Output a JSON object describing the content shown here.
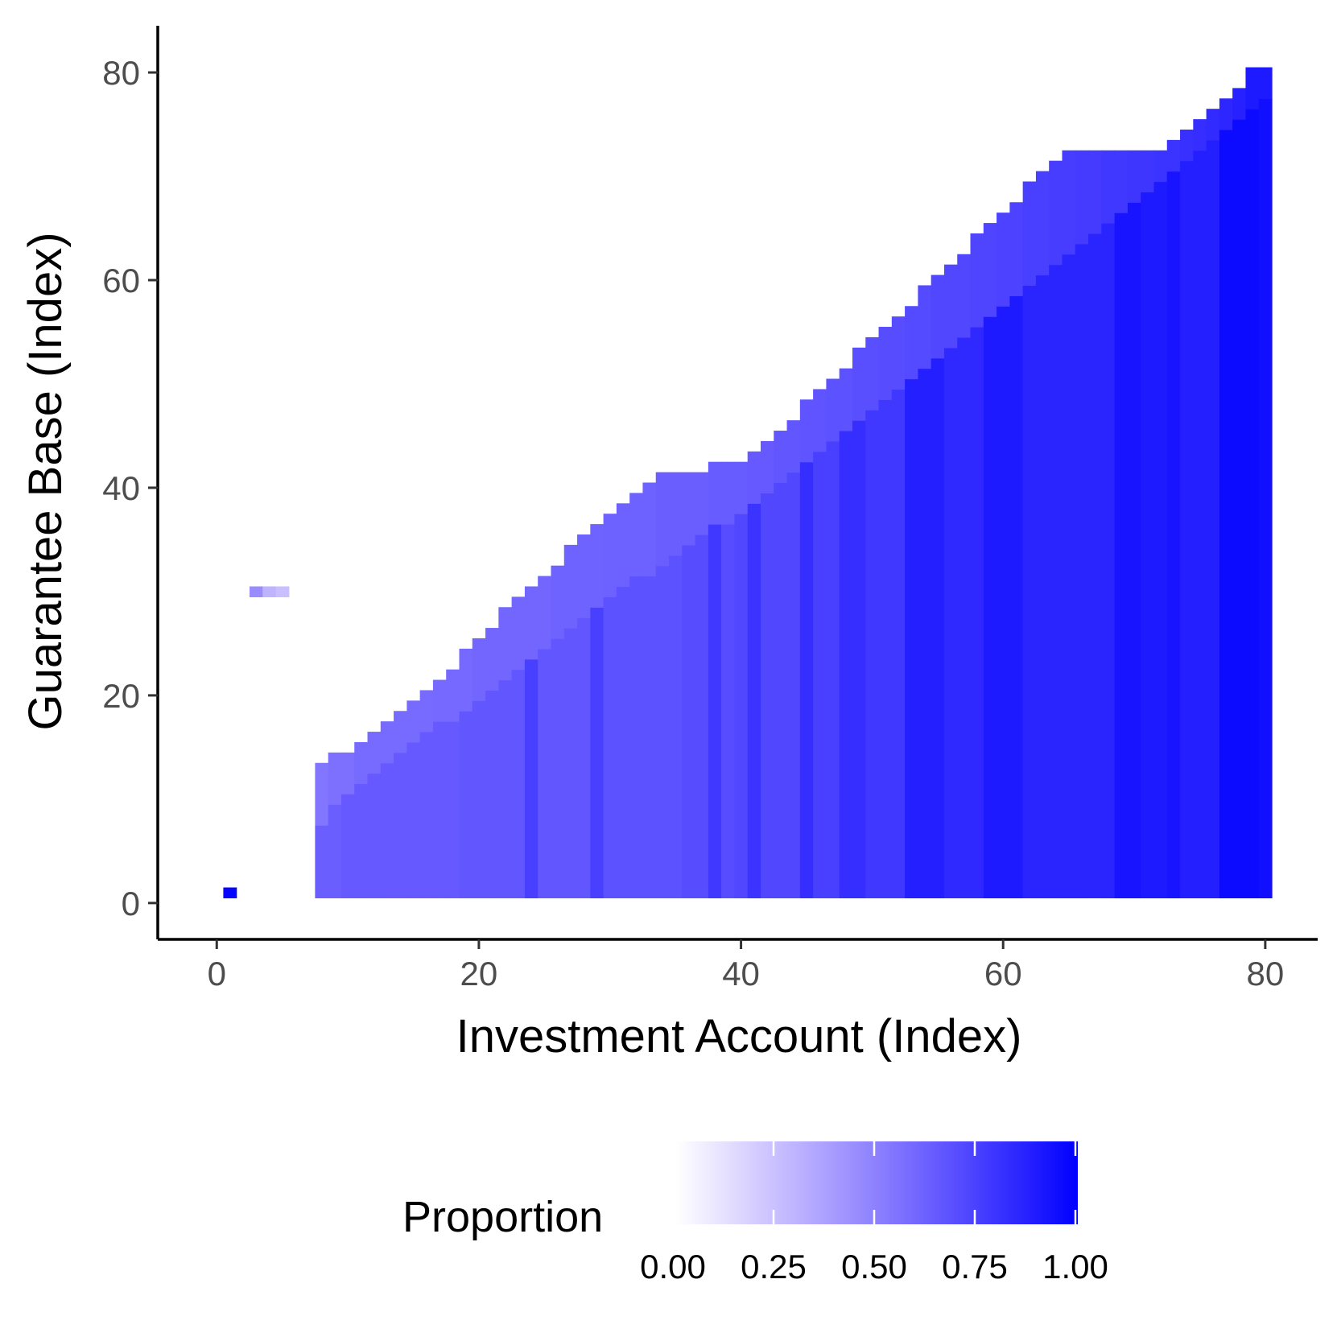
{
  "chart_data": {
    "type": "heatmap",
    "xlabel": "Investment Account (Index)",
    "ylabel": "Guarantee Base (Index)",
    "xlim": [
      -4.5,
      84
    ],
    "ylim": [
      -3.5,
      84.5
    ],
    "x_ticks": [
      0,
      20,
      40,
      60,
      80
    ],
    "y_ticks": [
      0,
      20,
      40,
      60,
      80
    ],
    "x_tick_labels": [
      "0",
      "20",
      "40",
      "60",
      "80"
    ],
    "y_tick_labels": [
      "0",
      "20",
      "40",
      "60",
      "80"
    ],
    "grid": false,
    "color_scale": {
      "low": "#ffffff",
      "high": "#0000ff",
      "min": 0,
      "max": 1
    },
    "legend": {
      "title": "Proportion",
      "placement": "bottom",
      "breaks": [
        0,
        0.25,
        0.5,
        0.75,
        1
      ],
      "labels": [
        "0.00",
        "0.25",
        "0.50",
        "0.75",
        "1.00"
      ]
    },
    "isolated_cells": [
      {
        "x": 1,
        "y": 1,
        "value": 0.98
      },
      {
        "x": 3,
        "y": 30,
        "value": 0.45
      },
      {
        "x": 4,
        "y": 30,
        "value": 0.3
      },
      {
        "x": 5,
        "y": 30,
        "value": 0.25
      }
    ],
    "columns": {
      "x": [
        8,
        9,
        10,
        11,
        12,
        13,
        14,
        15,
        16,
        17,
        18,
        19,
        20,
        21,
        22,
        23,
        24,
        25,
        26,
        27,
        28,
        29,
        30,
        31,
        32,
        33,
        34,
        35,
        36,
        37,
        38,
        39,
        40,
        41,
        42,
        43,
        44,
        45,
        46,
        47,
        48,
        49,
        50,
        51,
        52,
        53,
        54,
        55,
        56,
        57,
        58,
        59,
        60,
        61,
        62,
        63,
        64,
        65,
        66,
        67,
        68,
        69,
        70,
        71,
        72,
        73,
        74,
        75,
        76,
        77,
        78,
        79,
        80
      ],
      "y_top": [
        13,
        14,
        14,
        15,
        16,
        17,
        18,
        19,
        20,
        21,
        22,
        24,
        25,
        26,
        28,
        29,
        30,
        31,
        32,
        34,
        35,
        36,
        37,
        38,
        39,
        40,
        41,
        41,
        41,
        41,
        42,
        42,
        42,
        43,
        44,
        45,
        46,
        48,
        49,
        50,
        51,
        53,
        54,
        55,
        56,
        57,
        59,
        60,
        61,
        62,
        64,
        65,
        66,
        67,
        69,
        70,
        71,
        72,
        72,
        72,
        72,
        72,
        72,
        72,
        72,
        73,
        74,
        75,
        76,
        77,
        78,
        80,
        80
      ],
      "upper_split": [
        7,
        9,
        10,
        11,
        12,
        13,
        14,
        15,
        16,
        17,
        17,
        18,
        19,
        20,
        21,
        22,
        23,
        24,
        25,
        26,
        27,
        28,
        29,
        30,
        31,
        31,
        32,
        33,
        34,
        35,
        36,
        36,
        37,
        38,
        39,
        40,
        41,
        42,
        43,
        44,
        45,
        46,
        47,
        48,
        49,
        50,
        51,
        52,
        53,
        54,
        55,
        56,
        57,
        58,
        59,
        60,
        61,
        62,
        63,
        64,
        65,
        66,
        67,
        68,
        69,
        70,
        71,
        72,
        73,
        74,
        75,
        76,
        77
      ],
      "value_upper": [
        0.54,
        0.56,
        0.56,
        0.58,
        0.58,
        0.58,
        0.58,
        0.58,
        0.58,
        0.59,
        0.59,
        0.59,
        0.6,
        0.6,
        0.6,
        0.6,
        0.6,
        0.6,
        0.61,
        0.61,
        0.61,
        0.61,
        0.62,
        0.62,
        0.62,
        0.62,
        0.63,
        0.63,
        0.63,
        0.63,
        0.64,
        0.64,
        0.64,
        0.65,
        0.65,
        0.66,
        0.66,
        0.67,
        0.67,
        0.68,
        0.68,
        0.69,
        0.69,
        0.7,
        0.7,
        0.71,
        0.71,
        0.72,
        0.72,
        0.72,
        0.73,
        0.73,
        0.74,
        0.74,
        0.75,
        0.75,
        0.76,
        0.76,
        0.77,
        0.77,
        0.78,
        0.78,
        0.79,
        0.79,
        0.8,
        0.8,
        0.81,
        0.82,
        0.83,
        0.85,
        0.87,
        0.9,
        0.9
      ],
      "value_lower": [
        0.63,
        0.63,
        0.65,
        0.65,
        0.65,
        0.65,
        0.65,
        0.65,
        0.65,
        0.65,
        0.65,
        0.66,
        0.66,
        0.66,
        0.66,
        0.66,
        0.75,
        0.66,
        0.66,
        0.66,
        0.66,
        0.75,
        0.68,
        0.68,
        0.68,
        0.68,
        0.68,
        0.68,
        0.7,
        0.7,
        0.78,
        0.7,
        0.72,
        0.8,
        0.72,
        0.72,
        0.72,
        0.82,
        0.75,
        0.75,
        0.82,
        0.82,
        0.78,
        0.78,
        0.78,
        0.88,
        0.88,
        0.88,
        0.84,
        0.84,
        0.84,
        0.9,
        0.9,
        0.9,
        0.86,
        0.86,
        0.86,
        0.86,
        0.86,
        0.86,
        0.86,
        0.92,
        0.92,
        0.9,
        0.9,
        0.92,
        0.88,
        0.88,
        0.88,
        0.96,
        0.96,
        0.96,
        0.94
      ]
    }
  }
}
